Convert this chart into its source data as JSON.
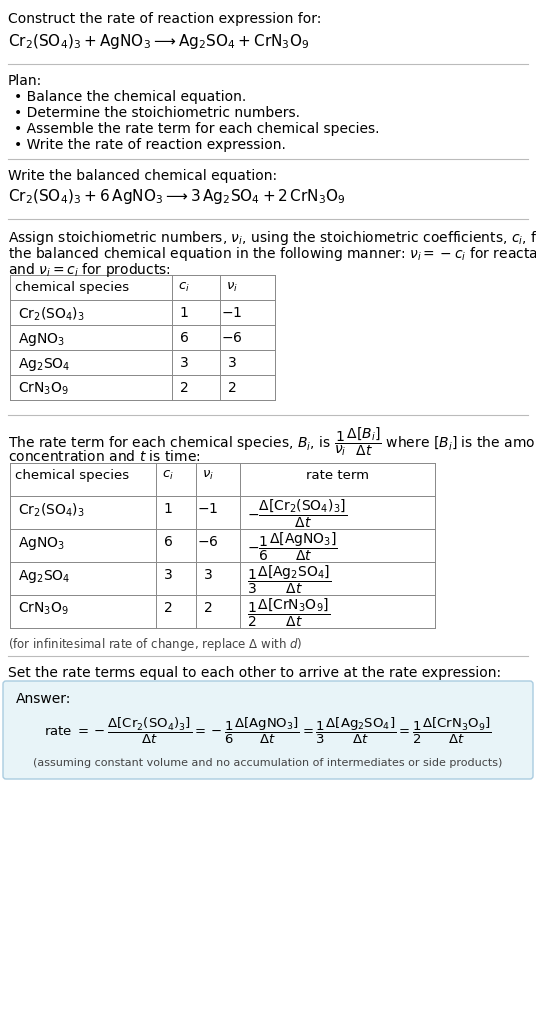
{
  "bg_color": "#ffffff",
  "answer_box_color": "#e8f4f8",
  "answer_box_border": "#aacce0",
  "separator_color": "#bbbbbb",
  "text_color": "#000000",
  "table_border_color": "#888888",
  "plan_items": [
    "• Balance the chemical equation.",
    "• Determine the stoichiometric numbers.",
    "• Assemble the rate term for each chemical species.",
    "• Write the rate of reaction expression."
  ]
}
